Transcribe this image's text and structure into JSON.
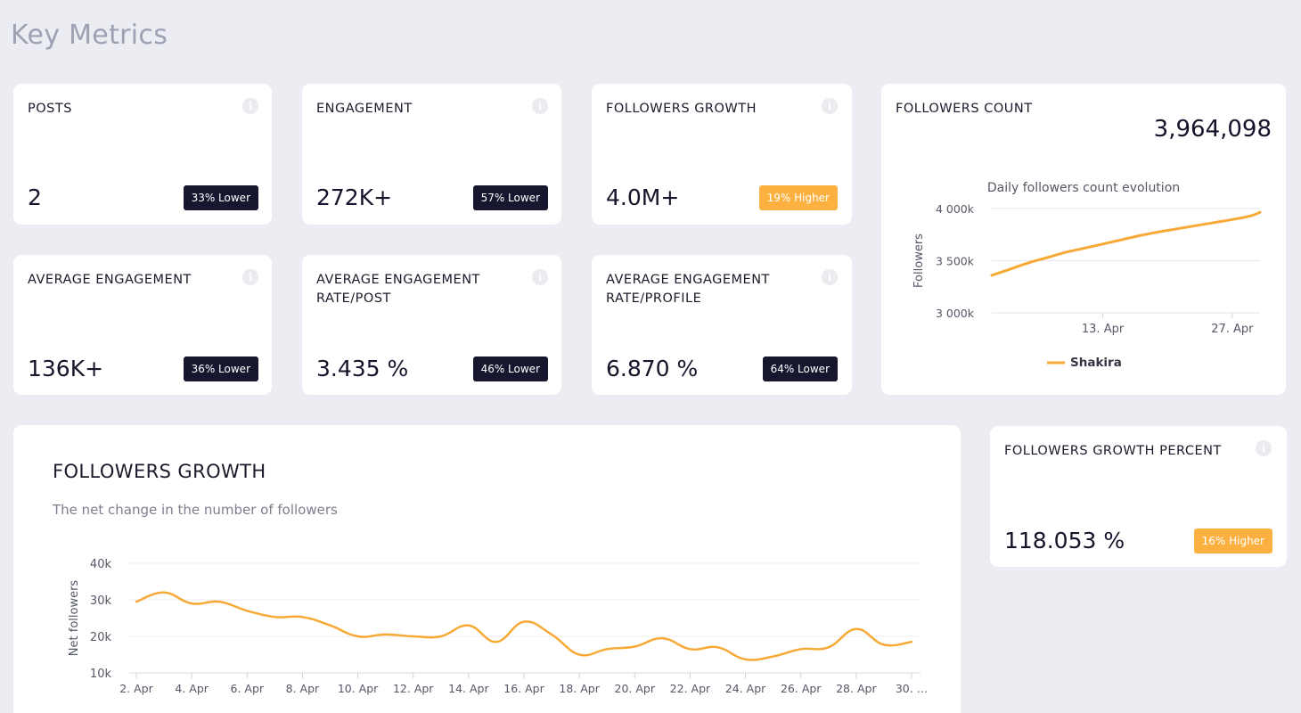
{
  "page": {
    "title": "Key Metrics"
  },
  "metrics": [
    {
      "id": "posts",
      "title": "POSTS",
      "value": "2",
      "badge": "33% Lower",
      "tone": "dark"
    },
    {
      "id": "engagement",
      "title": "ENGAGEMENT",
      "value": "272K+",
      "badge": "57% Lower",
      "tone": "dark"
    },
    {
      "id": "followers-growth",
      "title": "FOLLOWERS GROWTH",
      "value": "4.0M+",
      "badge": "19% Higher",
      "tone": "orange"
    },
    {
      "id": "average-engagement",
      "title": "AVERAGE ENGAGEMENT",
      "value": "136K+",
      "badge": "36% Lower",
      "tone": "dark"
    },
    {
      "id": "avg-engagement-rate-post",
      "title": "AVERAGE ENGAGEMENT RATE/POST",
      "value": "3.435 %",
      "badge": "46% Lower",
      "tone": "dark"
    },
    {
      "id": "avg-engagement-rate-profile",
      "title": "AVERAGE ENGAGEMENT RATE/PROFILE",
      "value": "6.870 %",
      "badge": "64% Lower",
      "tone": "dark"
    }
  ],
  "followers_count": {
    "title": "FOLLOWERS COUNT",
    "value": "3,964,098"
  },
  "followers_growth_percent": {
    "title": "FOLLOWERS GROWTH PERCENT",
    "value": "118.053 %",
    "badge": "16% Higher"
  },
  "growth_panel": {
    "title": "FOLLOWERS GROWTH",
    "subtitle": "The net change in the number of followers"
  },
  "colors": {
    "accent": "#f7a935",
    "dark_badge": "#16162e",
    "orange_badge": "#fbb040"
  },
  "chart_data": [
    {
      "type": "line",
      "title": "Daily followers count evolution",
      "xlabel": "",
      "ylabel": "Followers",
      "ylim": [
        3000000,
        4000000
      ],
      "yticks": [
        3000000,
        3500000,
        4000000
      ],
      "ytick_labels": [
        "3 000k",
        "3 500k",
        "4 000k"
      ],
      "xlim": [
        1,
        30
      ],
      "xticks": [
        13,
        27
      ],
      "xtick_labels": [
        "13. Apr",
        "27. Apr"
      ],
      "grid": true,
      "legend": "bottom-center",
      "series": [
        {
          "name": "Shakira",
          "color": "#f7a935",
          "x": [
            1,
            3,
            5,
            7,
            9,
            11,
            13,
            15,
            17,
            19,
            21,
            23,
            25,
            27,
            29,
            30
          ],
          "y": [
            3360000,
            3420000,
            3480000,
            3530000,
            3580000,
            3620000,
            3660000,
            3700000,
            3740000,
            3775000,
            3805000,
            3835000,
            3865000,
            3895000,
            3930000,
            3964098
          ]
        }
      ]
    },
    {
      "type": "line",
      "title": "",
      "xlabel": "",
      "ylabel": "Net followers",
      "ylim": [
        10000,
        40000
      ],
      "yticks": [
        10000,
        20000,
        30000,
        40000
      ],
      "ytick_labels": [
        "10k",
        "20k",
        "30k",
        "40k"
      ],
      "x": [
        2,
        3,
        4,
        5,
        6,
        7,
        8,
        9,
        10,
        11,
        12,
        13,
        14,
        15,
        16,
        17,
        18,
        19,
        20,
        21,
        22,
        23,
        24,
        25,
        26,
        27,
        28,
        29,
        30
      ],
      "xtick_labels": [
        "2. Apr",
        "4. Apr",
        "6. Apr",
        "8. Apr",
        "10. Apr",
        "12. Apr",
        "14. Apr",
        "16. Apr",
        "18. Apr",
        "20. Apr",
        "22. Apr",
        "24. Apr",
        "26. Apr",
        "28. Apr",
        "30. …"
      ],
      "grid": true,
      "series": [
        {
          "name": "",
          "color": "#f7a935",
          "values": [
            29500,
            32000,
            29000,
            29500,
            27000,
            25300,
            25300,
            23000,
            20000,
            20500,
            20000,
            20000,
            23000,
            18500,
            24000,
            20500,
            15000,
            16500,
            17200,
            19500,
            16500,
            17000,
            13700,
            14500,
            16500,
            17000,
            22000,
            17700,
            18500
          ]
        }
      ]
    }
  ]
}
